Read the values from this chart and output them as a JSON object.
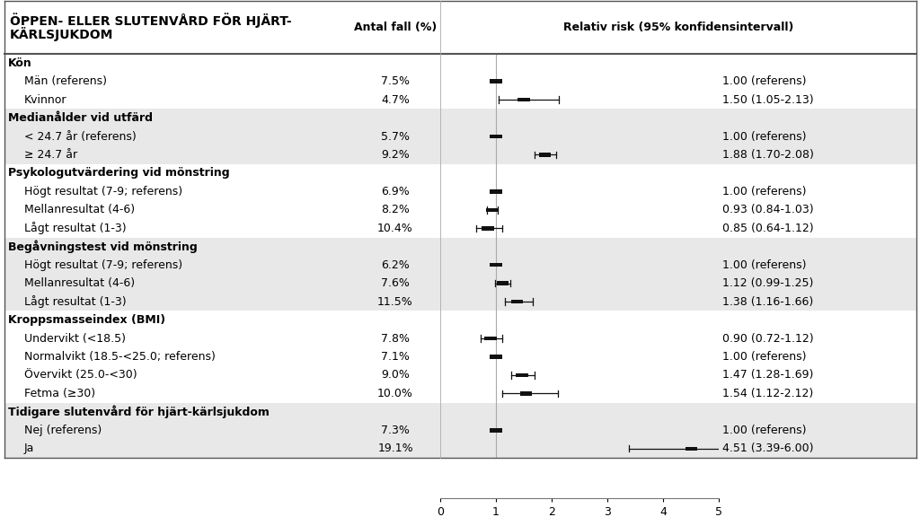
{
  "title_line1": "ÖPPEN- ELLER SLUTENVÅRD FÖR HJÄRT-",
  "title_line2": "KÄRLSJUKDOM",
  "col1_header": "Antal fall (%)",
  "col2_header": "Relativ risk (95% konfidensintervall)",
  "rows": [
    {
      "label": "Kön",
      "indent": 0,
      "bold": true,
      "pct": null,
      "rr": null,
      "ci_lo": null,
      "ci_hi": null,
      "rr_text": null,
      "bg": "white"
    },
    {
      "label": "Män (referens)",
      "indent": 1,
      "bold": false,
      "pct": "7.5%",
      "rr": 1.0,
      "ci_lo": 1.0,
      "ci_hi": 1.0,
      "rr_text": "1.00 (referens)",
      "bg": "white"
    },
    {
      "label": "Kvinnor",
      "indent": 1,
      "bold": false,
      "pct": "4.7%",
      "rr": 1.5,
      "ci_lo": 1.05,
      "ci_hi": 2.13,
      "rr_text": "1.50 (1.05-2.13)",
      "bg": "white"
    },
    {
      "label": "Medianålder vid utfärd",
      "indent": 0,
      "bold": true,
      "pct": null,
      "rr": null,
      "ci_lo": null,
      "ci_hi": null,
      "rr_text": null,
      "bg": "#e8e8e8"
    },
    {
      "label": "< 24.7 år (referens)",
      "indent": 1,
      "bold": false,
      "pct": "5.7%",
      "rr": 1.0,
      "ci_lo": 1.0,
      "ci_hi": 1.0,
      "rr_text": "1.00 (referens)",
      "bg": "#e8e8e8"
    },
    {
      "label": "≥ 24.7 år",
      "indent": 1,
      "bold": false,
      "pct": "9.2%",
      "rr": 1.88,
      "ci_lo": 1.7,
      "ci_hi": 2.08,
      "rr_text": "1.88 (1.70-2.08)",
      "bg": "#e8e8e8"
    },
    {
      "label": "Psykologutvärdering vid mönstring",
      "indent": 0,
      "bold": true,
      "pct": null,
      "rr": null,
      "ci_lo": null,
      "ci_hi": null,
      "rr_text": null,
      "bg": "white"
    },
    {
      "label": "Högt resultat (7-9; referens)",
      "indent": 1,
      "bold": false,
      "pct": "6.9%",
      "rr": 1.0,
      "ci_lo": 1.0,
      "ci_hi": 1.0,
      "rr_text": "1.00 (referens)",
      "bg": "white"
    },
    {
      "label": "Mellanresultat (4-6)",
      "indent": 1,
      "bold": false,
      "pct": "8.2%",
      "rr": 0.93,
      "ci_lo": 0.84,
      "ci_hi": 1.03,
      "rr_text": "0.93 (0.84-1.03)",
      "bg": "white"
    },
    {
      "label": "Lågt resultat (1-3)",
      "indent": 1,
      "bold": false,
      "pct": "10.4%",
      "rr": 0.85,
      "ci_lo": 0.64,
      "ci_hi": 1.12,
      "rr_text": "0.85 (0.64-1.12)",
      "bg": "white"
    },
    {
      "label": "Begåvningstest vid mönstring",
      "indent": 0,
      "bold": true,
      "pct": null,
      "rr": null,
      "ci_lo": null,
      "ci_hi": null,
      "rr_text": null,
      "bg": "#e8e8e8"
    },
    {
      "label": "Högt resultat (7-9; referens)",
      "indent": 1,
      "bold": false,
      "pct": "6.2%",
      "rr": 1.0,
      "ci_lo": 1.0,
      "ci_hi": 1.0,
      "rr_text": "1.00 (referens)",
      "bg": "#e8e8e8"
    },
    {
      "label": "Mellanresultat (4-6)",
      "indent": 1,
      "bold": false,
      "pct": "7.6%",
      "rr": 1.12,
      "ci_lo": 0.99,
      "ci_hi": 1.25,
      "rr_text": "1.12 (0.99-1.25)",
      "bg": "#e8e8e8"
    },
    {
      "label": "Lågt resultat (1-3)",
      "indent": 1,
      "bold": false,
      "pct": "11.5%",
      "rr": 1.38,
      "ci_lo": 1.16,
      "ci_hi": 1.66,
      "rr_text": "1.38 (1.16-1.66)",
      "bg": "#e8e8e8"
    },
    {
      "label": "Kroppsmasseindex (BMI)",
      "indent": 0,
      "bold": true,
      "pct": null,
      "rr": null,
      "ci_lo": null,
      "ci_hi": null,
      "rr_text": null,
      "bg": "white"
    },
    {
      "label": "Undervikt (<18.5)",
      "indent": 1,
      "bold": false,
      "pct": "7.8%",
      "rr": 0.9,
      "ci_lo": 0.72,
      "ci_hi": 1.12,
      "rr_text": "0.90 (0.72-1.12)",
      "bg": "white"
    },
    {
      "label": "Normalvikt (18.5-<25.0; referens)",
      "indent": 1,
      "bold": false,
      "pct": "7.1%",
      "rr": 1.0,
      "ci_lo": 1.0,
      "ci_hi": 1.0,
      "rr_text": "1.00 (referens)",
      "bg": "white"
    },
    {
      "label": "Övervikt (25.0-<30)",
      "indent": 1,
      "bold": false,
      "pct": "9.0%",
      "rr": 1.47,
      "ci_lo": 1.28,
      "ci_hi": 1.69,
      "rr_text": "1.47 (1.28-1.69)",
      "bg": "white"
    },
    {
      "label": "Fetma (≥30)",
      "indent": 1,
      "bold": false,
      "pct": "10.0%",
      "rr": 1.54,
      "ci_lo": 1.12,
      "ci_hi": 2.12,
      "rr_text": "1.54 (1.12-2.12)",
      "bg": "white"
    },
    {
      "label": "Tidigare slutenvård för hjärt-kärlsjukdom",
      "indent": 0,
      "bold": true,
      "pct": null,
      "rr": null,
      "ci_lo": null,
      "ci_hi": null,
      "rr_text": null,
      "bg": "#e8e8e8"
    },
    {
      "label": "Nej (referens)",
      "indent": 1,
      "bold": false,
      "pct": "7.3%",
      "rr": 1.0,
      "ci_lo": 1.0,
      "ci_hi": 1.0,
      "rr_text": "1.00 (referens)",
      "bg": "#e8e8e8"
    },
    {
      "label": "Ja",
      "indent": 1,
      "bold": false,
      "pct": "19.1%",
      "rr": 4.51,
      "ci_lo": 3.39,
      "ci_hi": 6.0,
      "rr_text": "4.51 (3.39-6.00)",
      "bg": "#e8e8e8"
    }
  ],
  "xmin": 0,
  "xmax": 5,
  "xticks": [
    0,
    1,
    2,
    3,
    4,
    5
  ],
  "header_bg": "#c8c8c8",
  "alt_bg": "#e8e8e8",
  "white_bg": "#ffffff",
  "border_color": "#555555",
  "text_color": "#000000",
  "marker_color": "#111111",
  "ref_line_color": "#aaaaaa",
  "font_size_label": 9,
  "font_size_header": 9,
  "font_size_title": 10
}
